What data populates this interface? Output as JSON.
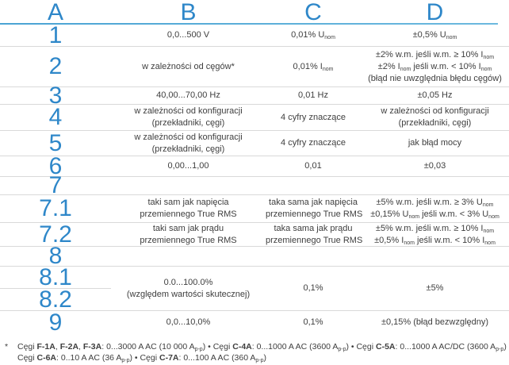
{
  "accent_color": "#2e87c9",
  "divider_color": "#d9d9d9",
  "header": {
    "a": "A",
    "b": "B",
    "c": "C",
    "d": "D"
  },
  "table": {
    "rows": {
      "r1": {
        "num": "1",
        "b": [
          [
            {
              "t": "0,0...500 V"
            }
          ]
        ],
        "c": [
          [
            {
              "t": "0,01% U"
            },
            {
              "s": "nom"
            }
          ]
        ],
        "d": [
          [
            {
              "t": "±0,5% U"
            },
            {
              "s": "nom"
            }
          ]
        ]
      },
      "r2": {
        "num": "2",
        "b": [
          [
            {
              "t": "w zależności od cęgów*"
            }
          ]
        ],
        "c": [
          [
            {
              "t": "0,01% I"
            },
            {
              "s": "nom"
            }
          ]
        ],
        "d": [
          [
            {
              "t": "±2% w.m. jeśli w.m. ≥ 10% I"
            },
            {
              "s": "nom"
            }
          ],
          [
            {
              "t": "±2% I"
            },
            {
              "s": "nom"
            },
            {
              "t": " jeśli w.m. < 10% I"
            },
            {
              "s": "nom"
            }
          ],
          [
            {
              "t": "(błąd nie uwzględnia błędu cęgów)"
            }
          ]
        ]
      },
      "r3": {
        "num": "3",
        "b": [
          [
            {
              "t": "40,00...70,00 Hz"
            }
          ]
        ],
        "c": [
          [
            {
              "t": "0,01 Hz"
            }
          ]
        ],
        "d": [
          [
            {
              "t": "±0,05 Hz"
            }
          ]
        ]
      },
      "r4": {
        "num": "4",
        "b": [
          [
            {
              "t": "w zależności od konfiguracji"
            }
          ],
          [
            {
              "t": "(przekładniki, cęgi)"
            }
          ]
        ],
        "c": [
          [
            {
              "t": "4 cyfry znaczące"
            }
          ]
        ],
        "d": [
          [
            {
              "t": "w zależności od konfiguracji"
            }
          ],
          [
            {
              "t": "(przekładniki, cęgi)"
            }
          ]
        ]
      },
      "r5": {
        "num": "5",
        "b": [
          [
            {
              "t": "w zależności od konfiguracji"
            }
          ],
          [
            {
              "t": "(przekładniki, cęgi)"
            }
          ]
        ],
        "c": [
          [
            {
              "t": "4 cyfry znaczące"
            }
          ]
        ],
        "d": [
          [
            {
              "t": "jak błąd mocy"
            }
          ]
        ]
      },
      "r6": {
        "num": "6",
        "b": [
          [
            {
              "t": "0,00...1,00"
            }
          ]
        ],
        "c": [
          [
            {
              "t": "0,01"
            }
          ]
        ],
        "d": [
          [
            {
              "t": "±0,03"
            }
          ]
        ]
      },
      "r7": {
        "num": "7"
      },
      "r71": {
        "num": "7.1",
        "b": [
          [
            {
              "t": "taki sam jak napięcia"
            }
          ],
          [
            {
              "t": "przemiennego True RMS"
            }
          ]
        ],
        "c": [
          [
            {
              "t": "taka sama jak napięcia"
            }
          ],
          [
            {
              "t": "przemiennego True RMS"
            }
          ]
        ],
        "d": [
          [
            {
              "t": "±5% w.m. jeśli w.m. ≥ 3% U"
            },
            {
              "s": "nom"
            }
          ],
          [
            {
              "t": "±0,15% U"
            },
            {
              "s": "nom"
            },
            {
              "t": " jeśli w.m. < 3% U"
            },
            {
              "s": "nom"
            }
          ]
        ]
      },
      "r72": {
        "num": "7.2",
        "b": [
          [
            {
              "t": "taki sam jak prądu"
            }
          ],
          [
            {
              "t": "przemiennego True RMS"
            }
          ]
        ],
        "c": [
          [
            {
              "t": "taka sama jak prądu"
            }
          ],
          [
            {
              "t": "przemiennego True RMS"
            }
          ]
        ],
        "d": [
          [
            {
              "t": "±5% w.m. jeśli w.m. ≥ 10% I"
            },
            {
              "s": "nom"
            }
          ],
          [
            {
              "t": "±0,5% I"
            },
            {
              "s": "nom"
            },
            {
              "t": " jeśli w.m. < 10% I"
            },
            {
              "s": "nom"
            }
          ]
        ]
      },
      "r8": {
        "num": "8"
      },
      "r81_82": {
        "num_top": "8.1",
        "num_bottom": "8.2",
        "b": [
          [
            {
              "t": "0.0...100.0%"
            }
          ],
          [
            {
              "t": "(względem wartości skutecznej)"
            }
          ]
        ],
        "c": [
          [
            {
              "t": "0,1%"
            }
          ]
        ],
        "d": [
          [
            {
              "t": "±5%"
            }
          ]
        ]
      },
      "r9": {
        "num": "9",
        "b": [
          [
            {
              "t": "0,0...10,0%"
            }
          ]
        ],
        "c": [
          [
            {
              "t": "0,1%"
            }
          ]
        ],
        "d": [
          [
            {
              "t": "±0,15% (błąd bezwzględny)"
            }
          ]
        ]
      }
    }
  },
  "footnote": {
    "marker": "*",
    "lines": [
      [
        {
          "t": "Cęgi "
        },
        {
          "b": "F-1A"
        },
        {
          "t": ", "
        },
        {
          "b": "F-2A"
        },
        {
          "t": ", "
        },
        {
          "b": "F-3A"
        },
        {
          "t": ": 0...3000 A AC (10 000 A"
        },
        {
          "s": "p-p"
        },
        {
          "t": ") • Cęgi "
        },
        {
          "b": "C-4A"
        },
        {
          "t": ": 0...1000 A AC (3600 A"
        },
        {
          "s": "p-p"
        },
        {
          "t": ") • Cęgi "
        },
        {
          "b": "C-5A"
        },
        {
          "t": ": 0...1000 A AC/DC (3600 A"
        },
        {
          "s": "p-p"
        },
        {
          "t": ") •"
        }
      ],
      [
        {
          "t": "Cęgi "
        },
        {
          "b": "C-6A"
        },
        {
          "t": ": 0..10 A AC (36 A"
        },
        {
          "s": "p-p"
        },
        {
          "t": ") • Cęgi "
        },
        {
          "b": "C-7A"
        },
        {
          "t": ": 0...100 A AC (360 A"
        },
        {
          "s": "p-p"
        },
        {
          "t": ")"
        }
      ]
    ]
  }
}
